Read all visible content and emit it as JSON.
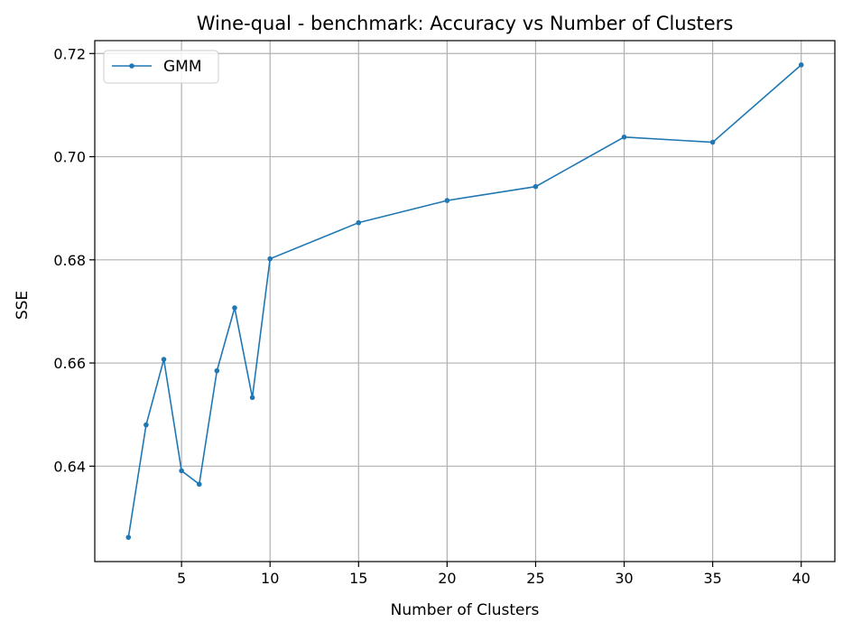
{
  "chart_data": {
    "type": "line",
    "title": "Wine-qual - benchmark: Accuracy vs Number of Clusters",
    "xlabel": "Number of Clusters",
    "ylabel": "SSE",
    "xlim": [
      0.1,
      41.9
    ],
    "ylim": [
      0.6215,
      0.7225
    ],
    "xticks": [
      5,
      10,
      15,
      20,
      25,
      30,
      35,
      40
    ],
    "yticks": [
      0.64,
      0.66,
      0.68,
      0.7,
      0.72
    ],
    "ytick_labels": [
      "0.64",
      "0.66",
      "0.68",
      "0.70",
      "0.72"
    ],
    "grid": true,
    "legend_position": "top-left",
    "series": [
      {
        "name": "GMM",
        "color": "#1f77b4",
        "marker": "circle",
        "x": [
          2,
          3,
          4,
          5,
          6,
          7,
          8,
          9,
          10,
          15,
          20,
          25,
          30,
          35,
          40
        ],
        "y": [
          0.6262,
          0.648,
          0.6607,
          0.6391,
          0.6365,
          0.6585,
          0.6707,
          0.6533,
          0.6802,
          0.6872,
          0.6915,
          0.6942,
          0.7038,
          0.7028,
          0.7178
        ]
      }
    ]
  }
}
